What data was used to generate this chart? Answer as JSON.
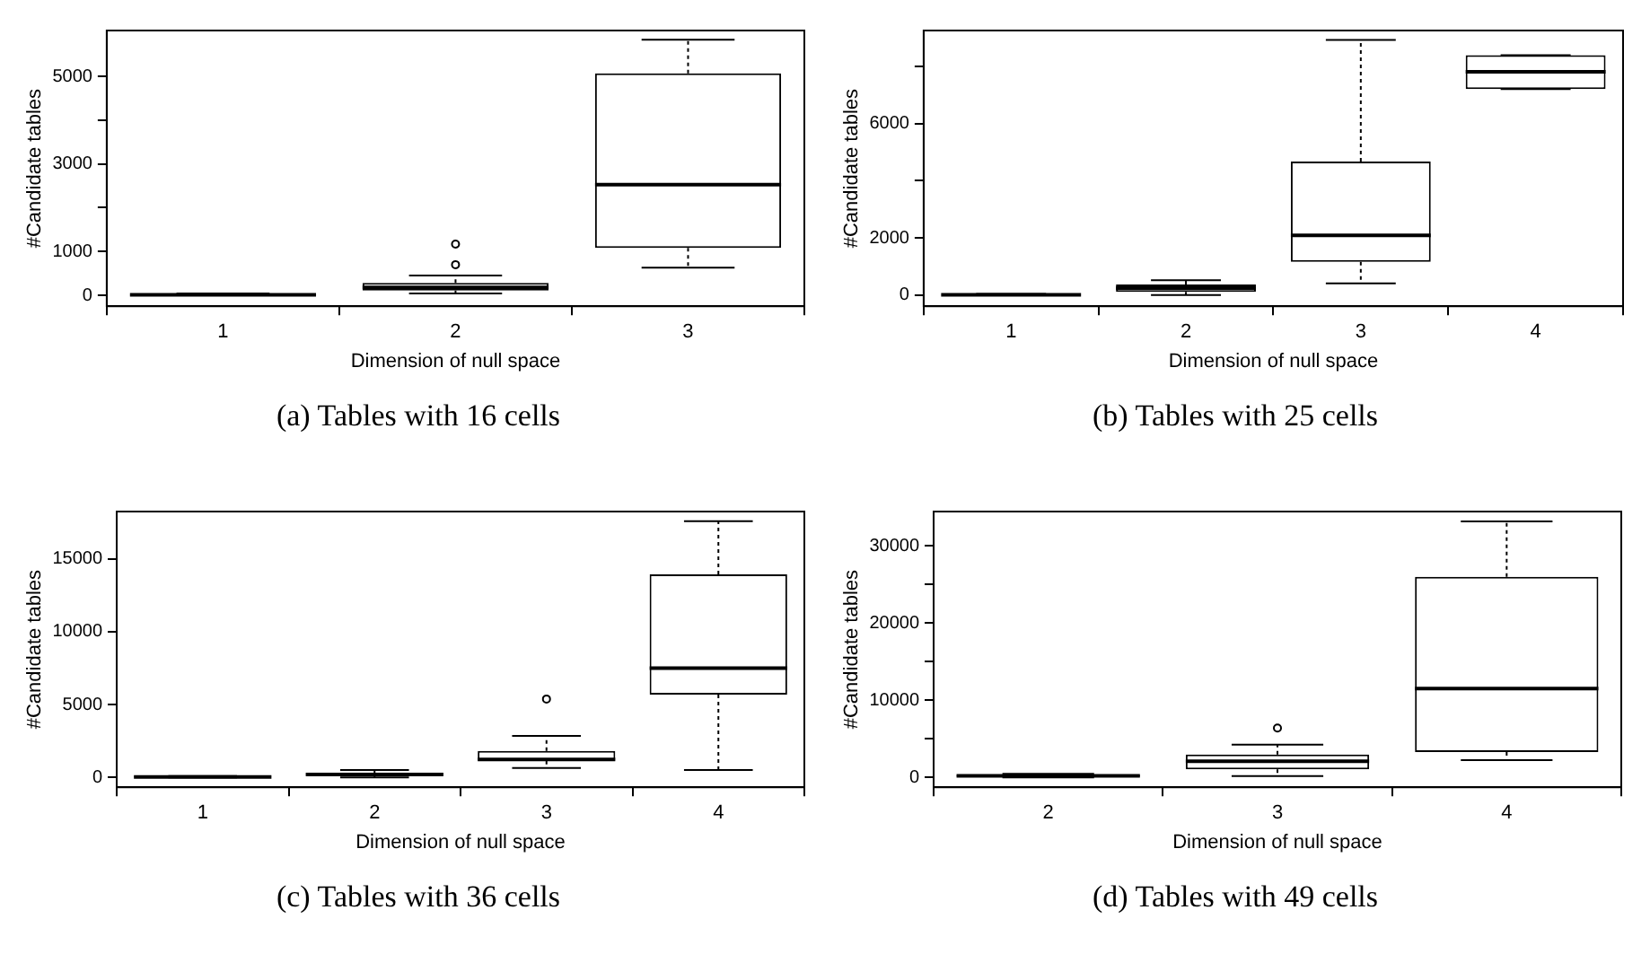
{
  "chart_data": [
    {
      "type": "box",
      "xlabel": "Dimension of null space",
      "ylabel": "#Candidate tables",
      "annotations": [
        "(a) Tables with 16 cells"
      ],
      "categories": [
        "1",
        "2",
        "3"
      ],
      "ylim": [
        -250,
        6050
      ],
      "yticks": [
        0,
        1000,
        {
          "value": 2000,
          "label": null
        },
        3000,
        {
          "value": 4000,
          "label": null
        },
        5000
      ],
      "grid": false,
      "legend": false,
      "color": "#000000",
      "boxes": [
        {
          "low": 0,
          "q1": 5,
          "median": 10,
          "q3": 20,
          "high": 40
        },
        {
          "low": 40,
          "q1": 110,
          "median": 180,
          "q3": 280,
          "high": 450,
          "outliers": [
            700,
            1170
          ]
        },
        {
          "low": 630,
          "q1": 1080,
          "median": 2530,
          "q3": 5070,
          "high": 5840
        }
      ]
    },
    {
      "type": "box",
      "xlabel": "Dimension of null space",
      "ylabel": "#Candidate tables",
      "annotations": [
        "(b) Tables with 25 cells"
      ],
      "categories": [
        "1",
        "2",
        "3",
        "4"
      ],
      "ylim": [
        -390,
        9250
      ],
      "yticks": [
        0,
        2000,
        {
          "value": 4000,
          "label": null
        },
        6000,
        {
          "value": 8000,
          "label": null
        }
      ],
      "grid": false,
      "legend": false,
      "color": "#000000",
      "boxes": [
        {
          "low": 0,
          "q1": 5,
          "median": 10,
          "q3": 20,
          "high": 40
        },
        {
          "low": 0,
          "q1": 110,
          "median": 240,
          "q3": 370,
          "high": 520
        },
        {
          "low": 410,
          "q1": 1160,
          "median": 2090,
          "q3": 4670,
          "high": 8920
        },
        {
          "low": 7200,
          "q1": 7200,
          "median": 7810,
          "q3": 8390,
          "high": 8390
        }
      ]
    },
    {
      "type": "box",
      "xlabel": "Dimension of null space",
      "ylabel": "#Candidate tables",
      "annotations": [
        "(c) Tables with 36 cells"
      ],
      "categories": [
        "1",
        "2",
        "3",
        "4"
      ],
      "ylim": [
        -680,
        18260
      ],
      "yticks": [
        0,
        5000,
        10000,
        15000
      ],
      "grid": false,
      "legend": false,
      "color": "#000000",
      "boxes": [
        {
          "low": 0,
          "q1": 10,
          "median": 20,
          "q3": 40,
          "high": 80
        },
        {
          "low": 0,
          "q1": 100,
          "median": 200,
          "q3": 300,
          "high": 500
        },
        {
          "low": 640,
          "q1": 1140,
          "median": 1230,
          "q3": 1820,
          "high": 2840,
          "outliers": [
            5380
          ]
        },
        {
          "low": 510,
          "q1": 5680,
          "median": 7500,
          "q3": 13940,
          "high": 17590
        }
      ]
    },
    {
      "type": "box",
      "xlabel": "Dimension of null space",
      "ylabel": "#Candidate tables",
      "annotations": [
        "(d) Tables with 49 cells"
      ],
      "categories": [
        "2",
        "3",
        "4"
      ],
      "ylim": [
        -1280,
        34480
      ],
      "yticks": [
        0,
        {
          "value": 5000,
          "label": null
        },
        10000,
        {
          "value": 15000,
          "label": null
        },
        20000,
        {
          "value": 25000,
          "label": null
        },
        30000
      ],
      "grid": false,
      "legend": false,
      "color": "#000000",
      "boxes": [
        {
          "low": 0,
          "q1": 100,
          "median": 200,
          "q3": 300,
          "high": 450
        },
        {
          "low": 160,
          "q1": 1040,
          "median": 2080,
          "q3": 2960,
          "high": 4240,
          "outliers": [
            6400
          ]
        },
        {
          "low": 2240,
          "q1": 3280,
          "median": 11520,
          "q3": 26000,
          "high": 33200
        }
      ]
    }
  ]
}
